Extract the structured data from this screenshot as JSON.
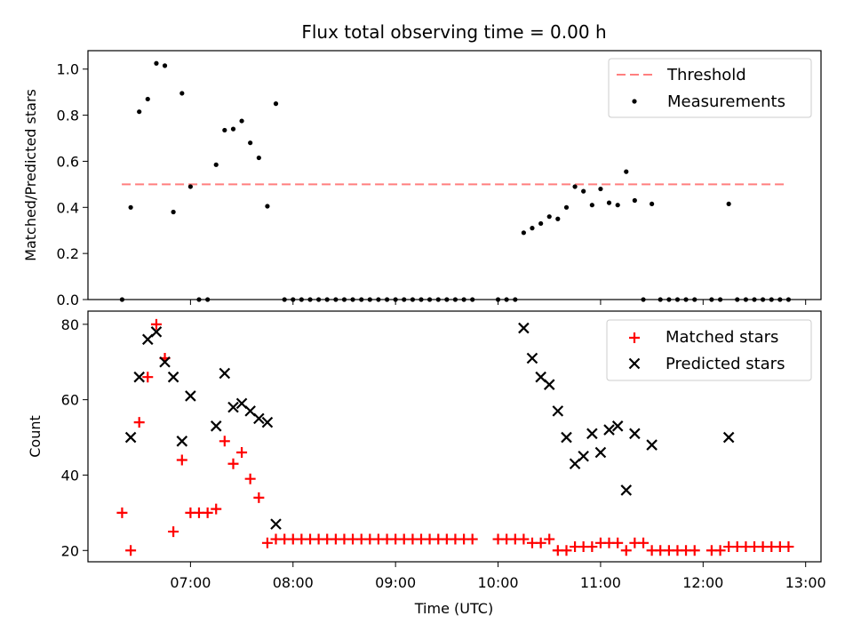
{
  "chart_data": [
    {
      "type": "scatter",
      "title": "Flux total observing time = 0.00 h",
      "xlabel": "",
      "ylabel": "Matched/Predicted stars",
      "xlim_hours": [
        6.0,
        13.15
      ],
      "ylim": [
        0.0,
        1.08
      ],
      "yticks": [
        0.0,
        0.2,
        0.4,
        0.6,
        0.8,
        1.0
      ],
      "ytick_labels": [
        "0.0",
        "0.2",
        "0.4",
        "0.6",
        "0.8",
        "1.0"
      ],
      "xticks_hours": [
        7,
        8,
        9,
        10,
        11,
        12,
        13
      ],
      "legend_position": "top-right",
      "threshold": {
        "name": "Threshold",
        "value": 0.5,
        "x_range_hours": [
          6.33,
          12.83
        ],
        "color": "#ff7f7f"
      },
      "series": [
        {
          "name": "Measurements",
          "color": "#000000",
          "marker": "dot",
          "x_hours": [
            6.333,
            6.417,
            6.5,
            6.583,
            6.667,
            6.75,
            6.833,
            6.917,
            7.0,
            7.083,
            7.167,
            7.25,
            7.333,
            7.417,
            7.5,
            7.583,
            7.667,
            7.75,
            7.833,
            7.917,
            8.0,
            8.083,
            8.167,
            8.25,
            8.333,
            8.417,
            8.5,
            8.583,
            8.667,
            8.75,
            8.833,
            8.917,
            9.0,
            9.083,
            9.167,
            9.25,
            9.333,
            9.417,
            9.5,
            9.583,
            9.667,
            9.75,
            10.0,
            10.083,
            10.167,
            10.25,
            10.333,
            10.417,
            10.5,
            10.583,
            10.667,
            10.75,
            10.833,
            10.917,
            11.0,
            11.083,
            11.167,
            11.25,
            11.333,
            11.417,
            11.5,
            11.583,
            11.667,
            11.75,
            11.833,
            11.917,
            12.083,
            12.167,
            12.25,
            12.333,
            12.417,
            12.5,
            12.583,
            12.667,
            12.75,
            12.833
          ],
          "y": [
            0.0,
            0.4,
            0.815,
            0.87,
            1.025,
            1.015,
            0.38,
            0.895,
            0.49,
            0.0,
            0.0,
            0.585,
            0.735,
            0.74,
            0.775,
            0.68,
            0.615,
            0.405,
            0.85,
            0.0,
            0.0,
            0.0,
            0.0,
            0.0,
            0.0,
            0.0,
            0.0,
            0.0,
            0.0,
            0.0,
            0.0,
            0.0,
            0.0,
            0.0,
            0.0,
            0.0,
            0.0,
            0.0,
            0.0,
            0.0,
            0.0,
            0.0,
            0.0,
            0.0,
            0.0,
            0.29,
            0.31,
            0.33,
            0.36,
            0.35,
            0.4,
            0.49,
            0.47,
            0.41,
            0.48,
            0.42,
            0.41,
            0.555,
            0.43,
            0.0,
            0.415,
            0.0,
            0.0,
            0.0,
            0.0,
            0.0,
            0.0,
            0.0,
            0.415,
            0.0,
            0.0,
            0.0,
            0.0,
            0.0,
            0.0,
            0.0
          ]
        }
      ]
    },
    {
      "type": "scatter",
      "title": "",
      "xlabel": "Time (UTC)",
      "ylabel": "Count",
      "xlim_hours": [
        6.0,
        13.15
      ],
      "ylim": [
        17,
        83.5
      ],
      "yticks": [
        20,
        40,
        60,
        80
      ],
      "ytick_labels": [
        "20",
        "40",
        "60",
        "80"
      ],
      "xticks_hours": [
        7,
        8,
        9,
        10,
        11,
        12,
        13
      ],
      "xtick_labels": [
        "07:00",
        "08:00",
        "09:00",
        "10:00",
        "11:00",
        "12:00",
        "13:00"
      ],
      "legend_position": "top-right",
      "series": [
        {
          "name": "Matched stars",
          "color": "#ff0000",
          "marker": "plus",
          "x_hours": [
            6.333,
            6.417,
            6.5,
            6.583,
            6.667,
            6.75,
            6.833,
            6.917,
            7.0,
            7.083,
            7.167,
            7.25,
            7.333,
            7.417,
            7.5,
            7.583,
            7.667,
            7.75,
            7.833,
            7.917,
            8.0,
            8.083,
            8.167,
            8.25,
            8.333,
            8.417,
            8.5,
            8.583,
            8.667,
            8.75,
            8.833,
            8.917,
            9.0,
            9.083,
            9.167,
            9.25,
            9.333,
            9.417,
            9.5,
            9.583,
            9.667,
            9.75,
            10.0,
            10.083,
            10.167,
            10.25,
            10.333,
            10.417,
            10.5,
            10.583,
            10.667,
            10.75,
            10.833,
            10.917,
            11.0,
            11.083,
            11.167,
            11.25,
            11.333,
            11.417,
            11.5,
            11.583,
            11.667,
            11.75,
            11.833,
            11.917,
            12.083,
            12.167,
            12.25,
            12.333,
            12.417,
            12.5,
            12.583,
            12.667,
            12.75,
            12.833
          ],
          "y": [
            30,
            20,
            54,
            66,
            80,
            71,
            25,
            44,
            30,
            30,
            30,
            31,
            49,
            43,
            46,
            39,
            34,
            22,
            23,
            23,
            23,
            23,
            23,
            23,
            23,
            23,
            23,
            23,
            23,
            23,
            23,
            23,
            23,
            23,
            23,
            23,
            23,
            23,
            23,
            23,
            23,
            23,
            23,
            23,
            23,
            23,
            22,
            22,
            23,
            20,
            20,
            21,
            21,
            21,
            22,
            22,
            22,
            20,
            22,
            22,
            20,
            20,
            20,
            20,
            20,
            20,
            20,
            20,
            21,
            21,
            21,
            21,
            21,
            21,
            21,
            21
          ]
        },
        {
          "name": "Predicted stars",
          "color": "#000000",
          "marker": "x",
          "x_hours": [
            6.417,
            6.5,
            6.583,
            6.667,
            6.75,
            6.833,
            6.917,
            7.0,
            7.25,
            7.333,
            7.417,
            7.5,
            7.583,
            7.667,
            7.75,
            7.833,
            10.25,
            10.333,
            10.417,
            10.5,
            10.583,
            10.667,
            10.75,
            10.833,
            10.917,
            11.0,
            11.083,
            11.167,
            11.25,
            11.333,
            11.5,
            12.25
          ],
          "y": [
            50,
            66,
            76,
            78,
            70,
            66,
            49,
            61,
            53,
            67,
            58,
            59,
            57,
            55,
            54,
            27,
            79,
            71,
            66,
            64,
            57,
            50,
            43,
            45,
            51,
            46,
            52,
            53,
            36,
            51,
            48,
            50
          ]
        }
      ]
    }
  ]
}
